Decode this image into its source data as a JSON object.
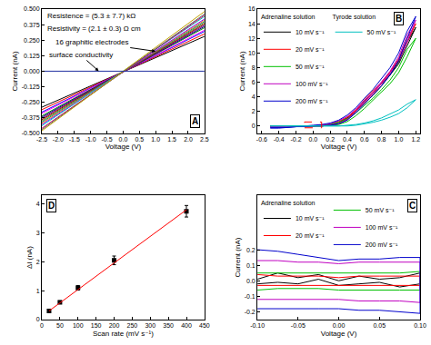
{
  "chart_data": [
    {
      "type": "line",
      "label": "A",
      "x_label": "Voltage (V)",
      "y_label": "Current (nA)",
      "xlim": [
        -2.5,
        2.5
      ],
      "xticks": [
        -2.5,
        {
          "value": -2,
          "label": "-2.0"
        },
        -1.5,
        {
          "value": -1,
          "label": "-1.0"
        },
        -0.5,
        {
          "value": 0,
          "label": "0.0"
        },
        0.5,
        {
          "value": 1,
          "label": "1.0"
        },
        1.5,
        {
          "value": 2,
          "label": "2.0"
        },
        2.5
      ],
      "ylim": [
        -0.5,
        0.5
      ],
      "yticks": [
        {
          "value": -0.5,
          "label": "-0.500"
        },
        {
          "value": -0.375,
          "label": "-0.375"
        },
        {
          "value": -0.25,
          "label": "-0.250"
        },
        {
          "value": -0.125,
          "label": "-0.125"
        },
        {
          "value": 0,
          "label": "0.000"
        },
        {
          "value": 0.125,
          "label": "0.125"
        },
        {
          "value": 0.25,
          "label": "0.250"
        },
        {
          "value": 0.375,
          "label": "0.375"
        },
        {
          "value": 0.5,
          "label": "0.500"
        }
      ],
      "annotations": [
        "Resistence = (5.3 ± 7.7) kΩ",
        "Resistivity = (2.1 ± 0.3) Ω cm",
        "16 graphitic electrodes",
        "surface conductivity"
      ],
      "x": [
        -2.5,
        2.5
      ],
      "series": [
        {
          "color": "#000000",
          "values": [
            -0.29,
            0.28
          ]
        },
        {
          "color": "#ff0000",
          "values": [
            -0.31,
            0.3
          ]
        },
        {
          "color": "#0000ff",
          "values": [
            -0.33,
            0.32
          ]
        },
        {
          "color": "#ff00ff",
          "values": [
            -0.34,
            0.33
          ]
        },
        {
          "color": "#008000",
          "values": [
            -0.36,
            0.35
          ]
        },
        {
          "color": "#000080",
          "values": [
            -0.37,
            0.36
          ]
        },
        {
          "color": "#800080",
          "values": [
            -0.38,
            0.37
          ]
        },
        {
          "color": "#800000",
          "values": [
            -0.39,
            0.38
          ]
        },
        {
          "color": "#808000",
          "values": [
            -0.4,
            0.39
          ]
        },
        {
          "color": "#008080",
          "values": [
            -0.41,
            0.4
          ]
        },
        {
          "color": "#ff8000",
          "values": [
            -0.42,
            0.41
          ]
        },
        {
          "color": "#8000ff",
          "values": [
            -0.43,
            0.42
          ]
        },
        {
          "color": "#00c0c0",
          "values": [
            -0.44,
            0.44
          ]
        },
        {
          "color": "#c00060",
          "values": [
            -0.46,
            0.45
          ]
        },
        {
          "color": "#606060",
          "values": [
            -0.47,
            0.46
          ]
        },
        {
          "color": "#c0a000",
          "values": [
            -0.48,
            0.48
          ]
        },
        {
          "color": "#2030a0",
          "values": [
            0,
            0
          ]
        }
      ]
    },
    {
      "type": "line",
      "label": "B",
      "x_label": "Voltage (V)",
      "y_label": "Current (nA)",
      "xlim": [
        -0.65,
        1.25
      ],
      "xticks": [
        -0.6,
        -0.4,
        -0.2,
        {
          "value": 0,
          "label": "0.0"
        },
        0.2,
        0.4,
        0.6,
        0.8,
        {
          "value": 1,
          "label": "1.0"
        },
        1.2
      ],
      "ylim": [
        -1,
        16
      ],
      "yticks": [
        0,
        2,
        4,
        6,
        8,
        10,
        12,
        14,
        16
      ],
      "legend": "upper left",
      "x": [
        -0.5,
        -0.4,
        -0.3,
        -0.2,
        -0.1,
        0,
        0.1,
        0.2,
        0.3,
        0.4,
        0.5,
        0.6,
        0.7,
        0.8,
        0.9,
        1.0,
        1.1,
        1.2,
        1.1,
        1.0,
        0.9,
        0.8,
        0.7,
        0.6,
        0.5,
        0.4,
        0.3,
        0.2,
        0.1,
        0,
        -0.1,
        -0.2,
        -0.3,
        -0.4,
        -0.5
      ],
      "series_groups": [
        {
          "title": "Adrenaline solution",
          "series": [
            {
              "name": "10 mV s⁻¹",
              "color": "#000000",
              "values": [
                0,
                0,
                0,
                0,
                0,
                0,
                0,
                0.1,
                0.3,
                0.9,
                2,
                3.4,
                4.6,
                5.8,
                7,
                8.5,
                11,
                13.5,
                11.5,
                8.8,
                7,
                5.5,
                4.2,
                3.1,
                2,
                1.1,
                0.5,
                0.2,
                0.1,
                0,
                0,
                0,
                0,
                0,
                0
              ]
            },
            {
              "name": "20 mV s⁻¹",
              "color": "#ff0000",
              "values": [
                -0.1,
                0,
                0,
                0,
                0,
                0,
                0,
                0.1,
                0.3,
                1,
                2.2,
                3.6,
                4.8,
                6,
                7.4,
                9,
                11.5,
                14,
                12,
                9.2,
                7.4,
                5.8,
                4.4,
                3.3,
                2.1,
                1.2,
                0.6,
                0.2,
                0.1,
                0,
                0,
                0,
                0,
                -0.1,
                -0.1
              ]
            },
            {
              "name": "50 mV s⁻¹",
              "color": "#00c000",
              "values": [
                -0.1,
                -0.1,
                0,
                0,
                0,
                0,
                0,
                0.1,
                0.2,
                0.6,
                1.4,
                2.4,
                3.5,
                4.6,
                5.8,
                7.3,
                9.5,
                12,
                10.5,
                8,
                6.3,
                5,
                3.8,
                2.8,
                1.8,
                1,
                0.5,
                0.2,
                0.1,
                0,
                0,
                0,
                -0.1,
                -0.1,
                -0.1
              ]
            },
            {
              "name": "100 mV s⁻¹",
              "color": "#c000c0",
              "values": [
                -0.1,
                -0.1,
                -0.1,
                -0.1,
                0,
                0,
                0,
                0.1,
                0.3,
                0.9,
                2,
                3.3,
                4.5,
                5.8,
                7.2,
                9,
                11.5,
                14.5,
                12.5,
                9.5,
                7.5,
                6,
                4.6,
                3.5,
                2.3,
                1.3,
                0.7,
                0.3,
                0.1,
                0,
                0,
                -0.1,
                -0.1,
                -0.2,
                -0.2
              ]
            },
            {
              "name": "200 mV s⁻¹",
              "color": "#0000cc",
              "values": [
                -0.2,
                -0.2,
                -0.2,
                -0.1,
                -0.1,
                0,
                0,
                0.1,
                0.3,
                0.8,
                1.8,
                3,
                4.2,
                5.5,
                7,
                9,
                12,
                15,
                13,
                10,
                8,
                6.5,
                5,
                3.8,
                2.5,
                1.5,
                0.8,
                0.4,
                0.2,
                0.1,
                0,
                -0.1,
                -0.2,
                -0.3,
                -0.3
              ]
            }
          ]
        },
        {
          "title": "Tyrode solution",
          "series": [
            {
              "name": "50 mV s⁻¹",
              "color": "#00c0c0",
              "values": [
                0,
                0,
                0,
                0,
                0,
                0,
                0,
                0,
                0,
                0,
                0.1,
                0.3,
                0.5,
                0.8,
                1.2,
                1.7,
                2.5,
                3.6,
                3,
                2.2,
                1.6,
                1.1,
                0.7,
                0.4,
                0.2,
                0.1,
                0,
                0,
                0,
                0,
                0,
                0,
                0,
                0,
                0
              ]
            }
          ]
        }
      ]
    },
    {
      "type": "line",
      "label": "C",
      "x_label": "Voltage (V)",
      "y_label": "Current (nA)",
      "xlim": [
        -0.1,
        0.1
      ],
      "xticks": [
        {
          "value": -0.1,
          "label": "-0.10"
        },
        -0.05,
        {
          "value": 0,
          "label": "0.00"
        },
        0.05,
        {
          "value": 0.1,
          "label": "0.10"
        }
      ],
      "ylim": [
        -0.25,
        0.55
      ],
      "yticks": [
        -0.2,
        -0.1,
        {
          "value": 0,
          "label": "0.0"
        },
        0.1,
        0.2
      ],
      "legend": "upper left",
      "x": [
        -0.1,
        -0.075,
        -0.05,
        -0.025,
        0,
        0.025,
        0.05,
        0.075,
        0.1,
        0.1,
        0.075,
        0.05,
        0.025,
        0,
        -0.025,
        -0.05,
        -0.075,
        -0.1
      ],
      "series_groups": [
        {
          "title": "Adrenaline solution",
          "series": [
            {
              "name": "10 mV s⁻¹",
              "color": "#000000",
              "values": [
                0.01,
                0.05,
                0.02,
                0.04,
                0,
                0.03,
                0.01,
                0.02,
                0.05,
                -0.02,
                -0.04,
                -0.01,
                -0.02,
                -0.03,
                0.01,
                -0.02,
                -0.01,
                -0.02
              ]
            },
            {
              "name": "20 mV s⁻¹",
              "color": "#ff0000",
              "values": [
                0.04,
                0.03,
                0.03,
                0.03,
                0.02,
                0.03,
                0.03,
                0.03,
                0.03,
                -0.03,
                -0.03,
                -0.03,
                -0.03,
                -0.03,
                -0.03,
                -0.03,
                -0.03,
                -0.03
              ]
            },
            {
              "name": "50 mV s⁻¹",
              "color": "#00c000",
              "values": [
                0.05,
                0.05,
                0.05,
                0.05,
                0.05,
                0.05,
                0.05,
                0.05,
                0.06,
                -0.06,
                -0.06,
                -0.06,
                -0.06,
                -0.06,
                -0.05,
                -0.05,
                -0.05,
                -0.06
              ]
            },
            {
              "name": "100 mV s⁻¹",
              "color": "#c000c0",
              "values": [
                0.13,
                0.13,
                0.12,
                0.12,
                0.11,
                0.12,
                0.12,
                0.12,
                0.12,
                -0.14,
                -0.13,
                -0.13,
                -0.13,
                -0.12,
                -0.12,
                -0.12,
                -0.12,
                -0.12
              ]
            },
            {
              "name": "200 mV s⁻¹",
              "color": "#0000cc",
              "values": [
                0.2,
                0.19,
                0.17,
                0.15,
                0.13,
                0.14,
                0.14,
                0.15,
                0.15,
                -0.21,
                -0.2,
                -0.19,
                -0.19,
                -0.18,
                -0.18,
                -0.18,
                -0.18,
                -0.18
              ]
            }
          ]
        }
      ]
    },
    {
      "type": "scatter",
      "label": "D",
      "x_label": "Scan rate (mV s⁻¹)",
      "y_label": "ΔI (nA)",
      "xlim": [
        0,
        450
      ],
      "xticks": [
        0,
        50,
        100,
        150,
        200,
        250,
        300,
        350,
        400,
        450
      ],
      "ylim": [
        0,
        4.3
      ],
      "yticks": [
        0,
        1,
        2,
        3,
        4
      ],
      "x": [
        20,
        50,
        100,
        200,
        400
      ],
      "series": [
        {
          "type": "scatter",
          "marker": "square",
          "color": "#000000",
          "values": [
            0.3,
            0.6,
            1.1,
            2.05,
            3.75
          ],
          "errors": [
            0.05,
            0.05,
            0.08,
            0.15,
            0.2
          ]
        },
        {
          "type": "line",
          "color": "#ff0000",
          "values": [
            0.3,
            0.58,
            1.04,
            1.96,
            3.8
          ]
        }
      ]
    }
  ]
}
